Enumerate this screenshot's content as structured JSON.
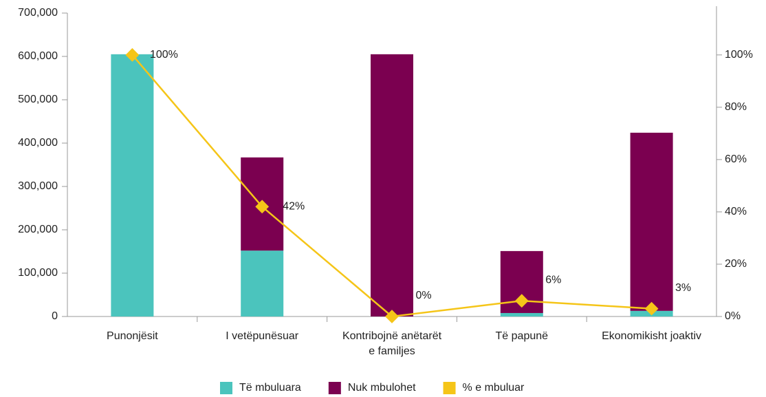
{
  "chart_data": {
    "type": "bar",
    "stacked": true,
    "categories": [
      "Punonjësit",
      "I vetëpunësuar",
      "Kontribojnë anëtarët e familjes",
      "Të papunë",
      "Ekonomikisht joaktiv"
    ],
    "series": [
      {
        "name": "Të mbuluara",
        "type": "bar",
        "color": "#4bc4bd",
        "values": [
          605000,
          152000,
          0,
          8000,
          13000
        ]
      },
      {
        "name": "Nuk mbulohet",
        "type": "bar",
        "color": "#7b0050",
        "values": [
          0,
          215000,
          605000,
          143000,
          411000
        ]
      },
      {
        "name": "% e mbuluar",
        "type": "line",
        "axis": "y2",
        "color": "#f5c518",
        "values": [
          100,
          42,
          0,
          6,
          3
        ],
        "value_labels": [
          "100%",
          "42%",
          "0%",
          "6%",
          "3%"
        ]
      }
    ],
    "ylim": [
      0,
      700000
    ],
    "yticks": [
      0,
      {
        "value": 100000,
        "label": "100,000"
      },
      {
        "value": 200000,
        "label": "200,000"
      },
      {
        "value": 300000,
        "label": "300,000"
      },
      {
        "value": 400000,
        "label": "400,000"
      },
      {
        "value": 500000,
        "label": "500,000"
      },
      {
        "value": 600000,
        "label": "600,000"
      },
      {
        "value": 700000,
        "label": "700,000"
      }
    ],
    "y2lim": [
      0,
      116
    ],
    "y2ticks": [
      {
        "value": 0,
        "label": "0%"
      },
      {
        "value": 20,
        "label": "20%"
      },
      {
        "value": 40,
        "label": "40%"
      },
      {
        "value": 60,
        "label": "60%"
      },
      {
        "value": 80,
        "label": "80%"
      },
      {
        "value": 100,
        "label": "100%"
      }
    ],
    "legend": "bottom",
    "grid": false
  }
}
